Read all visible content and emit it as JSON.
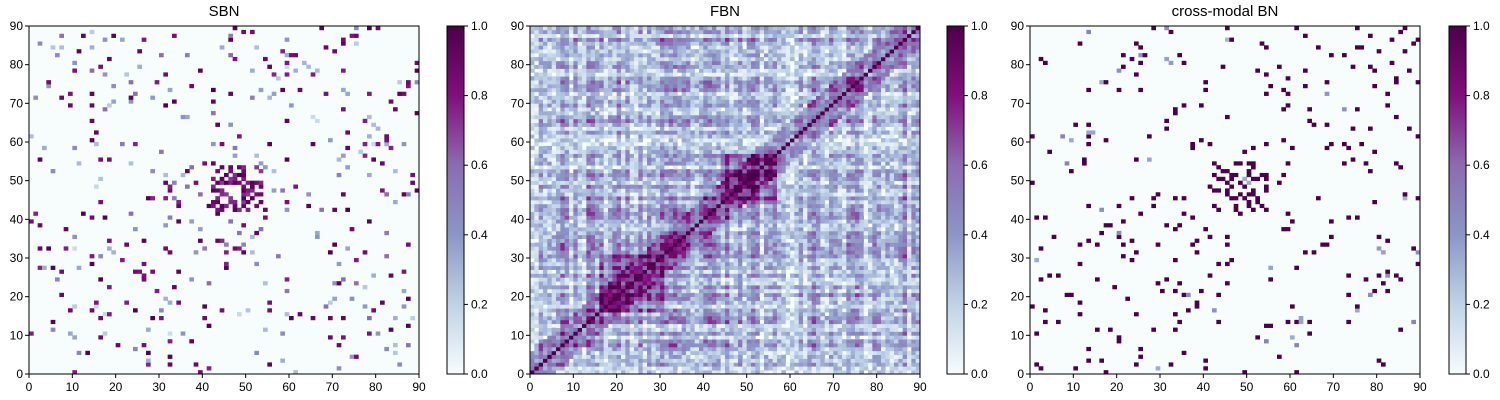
{
  "chart_data": [
    {
      "type": "heatmap",
      "title": "SBN",
      "xlabel": "",
      "ylabel": "",
      "xlim": [
        0,
        90
      ],
      "ylim": [
        0,
        90
      ],
      "matrix_size": 90,
      "x_ticks": [
        0,
        10,
        20,
        30,
        40,
        50,
        60,
        70,
        80,
        90
      ],
      "y_ticks": [
        0,
        10,
        20,
        30,
        40,
        50,
        60,
        70,
        80,
        90
      ],
      "colorbar": {
        "range": [
          0.0,
          1.0
        ],
        "ticks": [
          "0.0",
          "0.2",
          "0.4",
          "0.6",
          "0.8",
          "1.0"
        ]
      },
      "colormap": [
        "#f7fcfd",
        "#bfd3e6",
        "#8c96c6",
        "#8c6bb1",
        "#810f7c",
        "#4d004b"
      ],
      "density": "sparse",
      "diagonal_value": 0.0,
      "seed": 11
    },
    {
      "type": "heatmap",
      "title": "FBN",
      "xlabel": "",
      "ylabel": "",
      "xlim": [
        0,
        90
      ],
      "ylim": [
        0,
        90
      ],
      "matrix_size": 90,
      "x_ticks": [
        0,
        10,
        20,
        30,
        40,
        50,
        60,
        70,
        80,
        90
      ],
      "y_ticks": [
        0,
        10,
        20,
        30,
        40,
        50,
        60,
        70,
        80,
        90
      ],
      "colorbar": {
        "range": [
          0.0,
          1.0
        ],
        "ticks": [
          "0.0",
          "0.2",
          "0.4",
          "0.6",
          "0.8",
          "1.0"
        ]
      },
      "colormap": [
        "#f7fcfd",
        "#bfd3e6",
        "#8c96c6",
        "#8c6bb1",
        "#810f7c",
        "#4d004b"
      ],
      "density": "dense",
      "diagonal_value": 1.0,
      "seed": 23
    },
    {
      "type": "heatmap",
      "title": "cross-modal BN",
      "xlabel": "",
      "ylabel": "",
      "xlim": [
        0,
        90
      ],
      "ylim": [
        0,
        90
      ],
      "matrix_size": 90,
      "x_ticks": [
        0,
        10,
        20,
        30,
        40,
        50,
        60,
        70,
        80,
        90
      ],
      "y_ticks": [
        0,
        10,
        20,
        30,
        40,
        50,
        60,
        70,
        80,
        90
      ],
      "colorbar": {
        "range": [
          0.0,
          1.0
        ],
        "ticks": [
          "0.0",
          "0.2",
          "0.4",
          "0.6",
          "0.8",
          "1.0"
        ]
      },
      "colormap": [
        "#f7fcfd",
        "#bfd3e6",
        "#8c96c6",
        "#8c6bb1",
        "#810f7c",
        "#4d004b"
      ],
      "density": "binary-sparse",
      "diagonal_value": 0.0,
      "seed": 37
    }
  ]
}
